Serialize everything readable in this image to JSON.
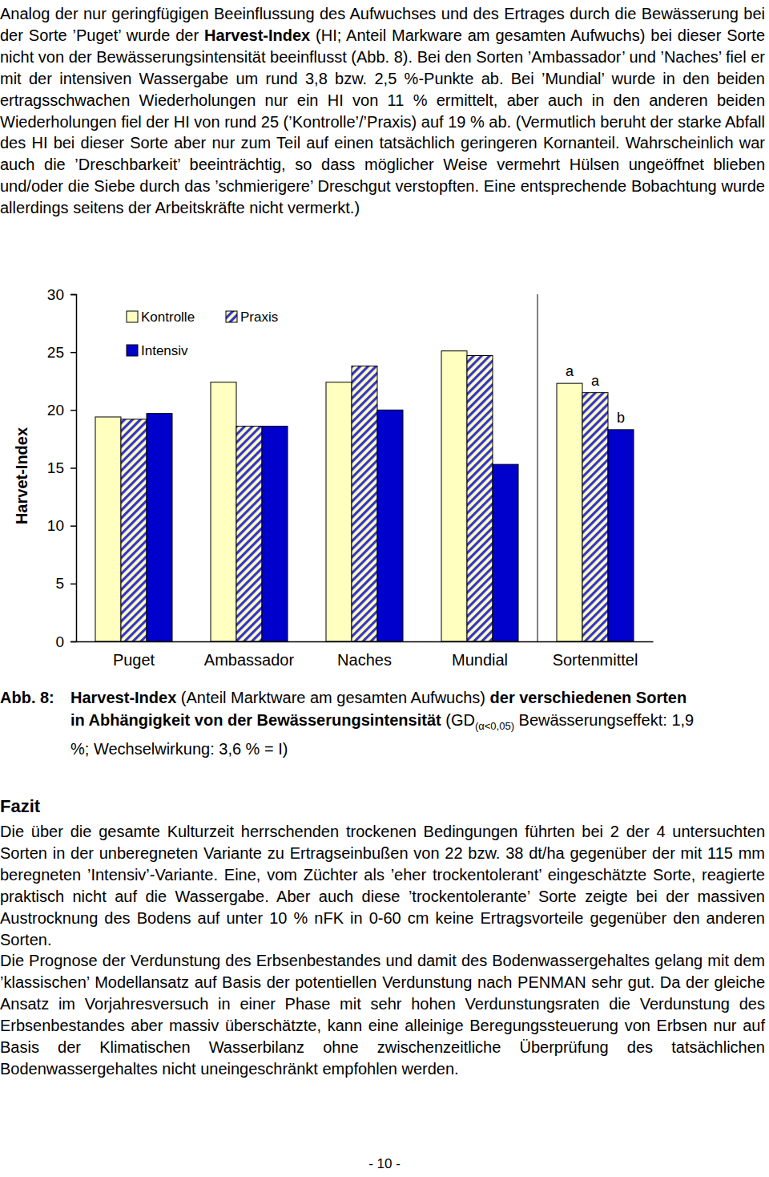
{
  "paragraphs": [
    {
      "runs": [
        {
          "text": "Analog der nur geringfügigen Beeinflussung des Aufwuchses und des Ertrages durch die Bewässerung bei der Sorte ’Puget’ wurde der ",
          "bold": false
        },
        {
          "text": "Harvest-Index",
          "bold": true
        },
        {
          "text": " (HI; Anteil Markware am gesamten Aufwuchs) bei dieser Sorte nicht von der Bewässerungsintensität beeinflusst (Abb. 8). Bei den Sorten ’Ambassador’ und ’Naches’ fiel er mit der intensiven Wassergabe um rund 3,8 bzw. 2,5 %-Punkte ab. Bei ’Mundial’ wurde in den beiden ertragsschwachen Wiederholungen nur ein HI von 11 % ermittelt, aber auch in den anderen beiden Wiederholungen fiel der HI von rund 25 (’Kontrolle’/’Praxis) auf 19 % ab. (Vermutlich beruht der starke Abfall des HI bei dieser Sorte aber nur zum Teil auf einen tatsächlich geringeren Kornanteil. Wahrscheinlich war auch die ’Dreschbarkeit’ beeinträchtig, so dass möglicher Weise vermehrt Hülsen ungeöffnet blieben und/oder die Siebe durch das ’schmierigere’ Dreschgut verstopften. Eine entsprechende Bobachtung wurde allerdings seitens der Arbeitskräfte nicht vermerkt.)",
          "bold": false
        }
      ]
    }
  ],
  "chart_data": {
    "type": "bar",
    "y_label": "Harvet-Index",
    "categories": [
      "Puget",
      "Ambassador",
      "Naches",
      "Mundial",
      "Sortenmittel"
    ],
    "series": [
      {
        "name": "Kontrolle",
        "color": "#ffffc0",
        "marker": "solid",
        "values": [
          19.4,
          22.4,
          22.4,
          25.1,
          22.3
        ]
      },
      {
        "name": "Praxis",
        "color": "#3333cc",
        "marker": "hatch",
        "values": [
          19.2,
          18.6,
          23.8,
          24.7,
          21.5
        ]
      },
      {
        "name": "Intensiv",
        "color": "#0000cc",
        "marker": "solid",
        "values": [
          19.7,
          18.6,
          20.0,
          15.3,
          18.3
        ]
      }
    ],
    "annotations": [
      {
        "text": "a",
        "category": "Sortenmittel",
        "series": "Kontrolle"
      },
      {
        "text": "a",
        "category": "Sortenmittel",
        "series": "Praxis"
      },
      {
        "text": "b",
        "category": "Sortenmittel",
        "series": "Intensiv"
      }
    ],
    "ylim": [
      0,
      30
    ],
    "yticks": [
      0,
      5,
      10,
      15,
      20,
      25,
      30
    ],
    "grid": false,
    "legend": "upper left"
  },
  "caption": {
    "label": "Abb. 8:",
    "runs": [
      {
        "text": "Harvest-Index",
        "bold": true,
        "subscript": false
      },
      {
        "text": " (Anteil Marktware am gesamten Aufwuchs)",
        "bold": false,
        "subscript": false
      },
      {
        "text": " der verschiedenen Sorten in Abhängigkeit von der Bewässerungsintensität",
        "bold": true,
        "subscript": false
      },
      {
        "text": " (GD",
        "bold": false,
        "subscript": false
      },
      {
        "text": "(α<0,05)",
        "bold": false,
        "subscript": true
      },
      {
        "text": " Bewässerungseffekt: 1,9 %; Wechselwirkung: 3,6 % = I)",
        "bold": false,
        "subscript": false
      }
    ]
  },
  "fazit": {
    "heading": "Fazit",
    "paragraphs": [
      {
        "runs": [
          {
            "text": "Die über die gesamte Kulturzeit herrschenden trockenen Bedingungen führten bei 2 der 4 untersuchten Sorten in der unberegneten Variante zu Ertragseinbußen von 22 bzw. 38 dt/ha gegenüber der mit 115 mm beregneten ’Intensiv’-Variante. Eine, vom Züchter als ’eher trockentolerant’ eingeschätzte Sorte, reagierte praktisch nicht auf die Wassergabe. Aber auch diese ’trockentolerante’ Sorte zeigte bei der massiven Austrocknung des Bodens auf unter 10 % nFK in 0-60 cm keine Ertragsvorteile gegenüber den anderen Sorten.",
            "bold": false
          }
        ]
      },
      {
        "runs": [
          {
            "text": "Die Prognose der Verdunstung des Erbsenbestandes und damit des Bodenwassergehaltes gelang mit dem ’klassischen’ Modellansatz auf Basis der potentiellen Verdunstung nach PENMAN sehr gut. Da der gleiche Ansatz im Vorjahresversuch in einer Phase mit sehr hohen Verdunstungsraten die Verdunstung des Erbsenbestandes aber massiv überschätzte, kann eine alleinige Beregungssteuerung von Erbsen nur auf Basis der Klimatischen Wasserbilanz ohne zwischenzeitliche Überprüfung des tatsächlichen Bodenwassergehaltes nicht uneingeschränkt empfohlen werden.",
            "bold": false
          }
        ]
      }
    ]
  },
  "page_number": "- 10 -"
}
